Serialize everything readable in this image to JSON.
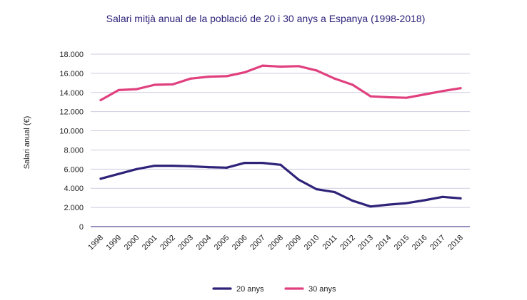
{
  "chart_data": {
    "type": "line",
    "title": "Salari mitjà anual de la població de 20 i 30 anys a Espanya (1998-2018)",
    "xlabel": "",
    "ylabel": "Salari anual (€)",
    "ylim": [
      0,
      18000
    ],
    "yticks": [
      "0",
      "2.000",
      "4.000",
      "6.000",
      "8.000",
      "10.000",
      "12.000",
      "14.000",
      "16.000",
      "18.000"
    ],
    "grid": true,
    "legend": "bottom",
    "categories": [
      "1998",
      "1999",
      "2000",
      "2001",
      "2002",
      "2003",
      "2004",
      "2005",
      "2006",
      "2007",
      "2008",
      "2009",
      "2010",
      "2011",
      "2012",
      "2013",
      "2014",
      "2015",
      "2016",
      "2017",
      "2018"
    ],
    "series": [
      {
        "name": "20 anys",
        "color": "#2e2379",
        "values": [
          5000,
          5500,
          6000,
          6350,
          6350,
          6300,
          6200,
          6150,
          6650,
          6650,
          6450,
          4900,
          3900,
          3600,
          2700,
          2100,
          2300,
          2450,
          2750,
          3100,
          2950
        ]
      },
      {
        "name": "30 anys",
        "color": "#e0407e",
        "values": [
          13200,
          14250,
          14350,
          14800,
          14850,
          15450,
          15650,
          15700,
          16100,
          16800,
          16700,
          16750,
          16300,
          15450,
          14800,
          13600,
          13500,
          13450,
          13800,
          14150,
          14450
        ]
      }
    ]
  },
  "colors": {
    "title": "#2e2379",
    "grid": "#cfcbe0",
    "baseline": "#2e2379"
  }
}
